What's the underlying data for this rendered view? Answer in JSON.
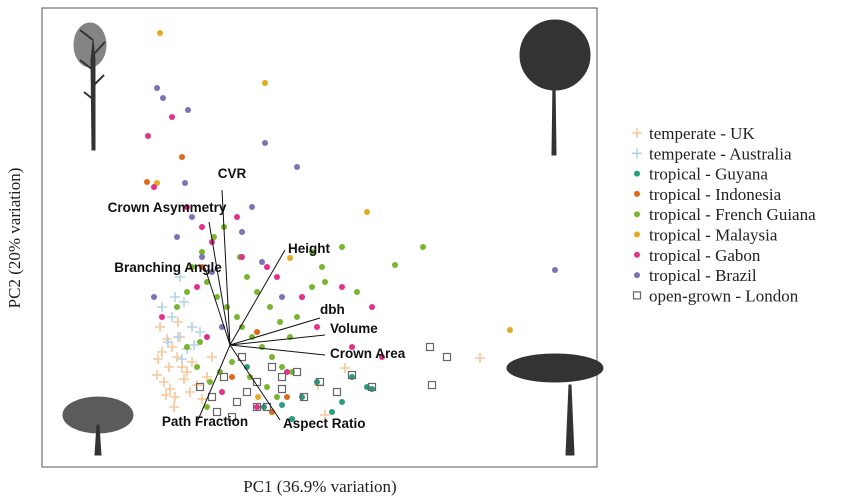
{
  "chart_data": {
    "type": "biplot",
    "xlabel": "PC1 (36.9% variation)",
    "ylabel": "PC2 (20% variation)",
    "xlim": [
      0,
      555
    ],
    "ylim": [
      0,
      459
    ],
    "series": [
      {
        "name": "temperate - UK",
        "color": "#f7c79a",
        "marker": "plus",
        "x": [
          118,
          125,
          130,
          135,
          140,
          115,
          122,
          128,
          133,
          145,
          150,
          138,
          120,
          127,
          142,
          148,
          155,
          160,
          132,
          124,
          116,
          136,
          438,
          283,
          303,
          276,
          165,
          170
        ],
        "y": [
          140,
          128,
          120,
          110,
          100,
          92,
          85,
          78,
          70,
          95,
          105,
          130,
          115,
          100,
          88,
          75,
          82,
          68,
          60,
          72,
          108,
          145,
          109,
          52,
          99,
          82,
          90,
          110
        ]
      },
      {
        "name": "temperate - Australia",
        "color": "#b3d3e8",
        "marker": "plus",
        "x": [
          120,
          130,
          142,
          150,
          136,
          145,
          158,
          126,
          140,
          133,
          152,
          138
        ],
        "y": [
          160,
          150,
          165,
          140,
          130,
          118,
          135,
          125,
          108,
          170,
          122,
          190
        ]
      },
      {
        "name": "tropical - Guyana",
        "color": "#2a9c7e",
        "marker": "circle",
        "x": [
          260,
          275,
          240,
          300,
          325,
          330,
          290,
          310,
          222,
          250,
          205
        ],
        "y": [
          70,
          85,
          62,
          65,
          80,
          78,
          55,
          90,
          60,
          48,
          100
        ]
      },
      {
        "name": "tropical - Indonesia",
        "color": "#dc6a1c",
        "marker": "circle",
        "x": [
          105,
          140,
          230,
          190,
          215,
          160,
          245
        ],
        "y": [
          285,
          310,
          55,
          90,
          135,
          200,
          70
        ]
      },
      {
        "name": "tropical - French Guiana",
        "color": "#77b62e",
        "marker": "circle",
        "x": [
          150,
          165,
          175,
          185,
          195,
          200,
          210,
          220,
          230,
          240,
          250,
          255,
          260,
          270,
          280,
          145,
          160,
          172,
          182,
          198,
          205,
          215,
          228,
          238,
          248,
          190,
          178,
          168,
          158,
          208,
          225,
          235,
          270,
          283,
          300,
          315,
          135,
          145,
          155,
          165,
          381,
          353
        ],
        "y": [
          200,
          185,
          170,
          160,
          150,
          140,
          130,
          120,
          110,
          100,
          95,
          150,
          170,
          180,
          200,
          175,
          215,
          230,
          240,
          210,
          190,
          175,
          160,
          145,
          130,
          105,
          95,
          85,
          125,
          90,
          80,
          70,
          215,
          185,
          220,
          175,
          160,
          120,
          100,
          60,
          220,
          202
        ]
      },
      {
        "name": "tropical - Malaysia",
        "color": "#e3aa22",
        "marker": "circle",
        "x": [
          118,
          223,
          115,
          325,
          468,
          248,
          216
        ],
        "y": [
          434,
          384,
          284,
          255,
          137,
          209,
          70
        ]
      },
      {
        "name": "tropical - Gabon",
        "color": "#e2318a",
        "marker": "circle",
        "x": [
          106,
          112,
          130,
          160,
          145,
          170,
          200,
          235,
          260,
          300,
          330,
          165,
          180,
          215,
          245,
          275,
          310,
          340,
          120,
          195,
          225,
          155
        ],
        "y": [
          331,
          280,
          350,
          240,
          260,
          225,
          210,
          190,
          170,
          180,
          160,
          130,
          75,
          60,
          95,
          140,
          120,
          110,
          150,
          250,
          200,
          180
        ]
      },
      {
        "name": "tropical - Brazil",
        "color": "#7b72b8",
        "marker": "circle",
        "x": [
          115,
          121,
          146,
          223,
          255,
          143,
          513,
          135,
          150,
          170,
          200,
          220,
          240,
          112,
          180,
          160,
          210
        ],
        "y": [
          379,
          369,
          357,
          324,
          300,
          284,
          197,
          230,
          250,
          195,
          235,
          205,
          170,
          170,
          140,
          210,
          260
        ]
      },
      {
        "name": "open-grown - London",
        "color": "#666666",
        "marker": "square",
        "x": [
          158,
          170,
          182,
          195,
          205,
          215,
          225,
          240,
          255,
          262,
          278,
          295,
          310,
          330,
          388,
          405,
          390,
          175,
          190,
          215,
          240,
          200,
          230
        ],
        "y": [
          80,
          70,
          90,
          65,
          75,
          85,
          60,
          78,
          95,
          70,
          85,
          75,
          92,
          80,
          120,
          110,
          82,
          55,
          50,
          60,
          90,
          110,
          100
        ]
      }
    ],
    "loadings": {
      "origin": [
        188,
        122
      ],
      "vectors": [
        {
          "name": "CVR",
          "x": 180,
          "y": 277
        },
        {
          "name": "Crown Asymmetry",
          "x": 167,
          "y": 245
        },
        {
          "name": "Height",
          "x": 243,
          "y": 217
        },
        {
          "name": "Branching Angle",
          "x": 163,
          "y": 199
        },
        {
          "name": "dbh",
          "x": 278,
          "y": 149
        },
        {
          "name": "Volume",
          "x": 283,
          "y": 132
        },
        {
          "name": "Crown Area",
          "x": 283,
          "y": 112
        },
        {
          "name": "Aspect Ratio",
          "x": 238,
          "y": 47
        },
        {
          "name": "Path Fraction",
          "x": 156,
          "y": 47
        }
      ]
    }
  }
}
